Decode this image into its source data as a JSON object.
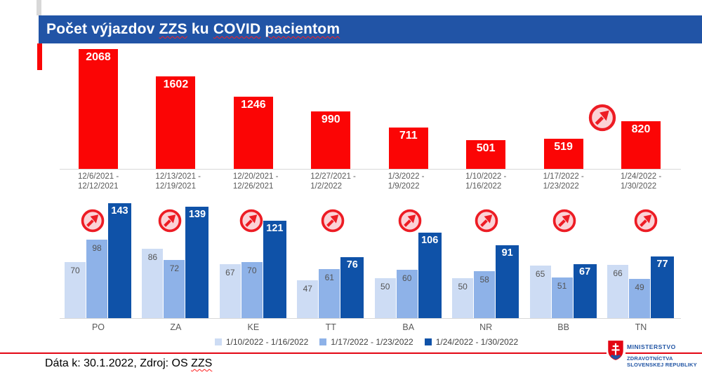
{
  "colors": {
    "banner_blue": "#2154A6",
    "bar_red": "#FB0505",
    "bar_light_blue": "#CDDCF4",
    "bar_medium_blue": "#8EB2E8",
    "bar_dark_blue": "#0F52A8",
    "axis_gray": "#D9D9D9",
    "label_gray": "#595959",
    "divider_red": "#E30613",
    "icon_red": "#ED1C24",
    "icon_fill_pink": "#FBD3D7",
    "logo_blue": "#2155A4"
  },
  "title": {
    "segments": [
      {
        "text": "Počet výjazdov ",
        "misspelled": false
      },
      {
        "text": "ZZS",
        "misspelled": true
      },
      {
        "text": " ku ",
        "misspelled": false
      },
      {
        "text": "COVID",
        "misspelled": true
      },
      {
        "text": " ",
        "misspelled": false
      },
      {
        "text": "pacientom",
        "misspelled": true
      }
    ]
  },
  "chart_data": [
    {
      "type": "bar",
      "title": "",
      "categories": [
        "12/6/2021 - 12/12/2021",
        "12/13/2021 - 12/19/2021",
        "12/20/2021 - 12/26/2021",
        "12/27/2021 - 1/2/2022",
        "1/3/2022 - 1/9/2022",
        "1/10/2022 - 1/16/2022",
        "1/17/2022 - 1/23/2022",
        "1/24/2022 - 1/30/2022"
      ],
      "values": [
        2068,
        1602,
        1246,
        990,
        711,
        501,
        519,
        820
      ],
      "bar_color": "#FB0505",
      "value_labels": "inside-top-white",
      "xlabel": "",
      "ylabel": "",
      "ylim": [
        0,
        2068
      ],
      "grid": false,
      "increase_marker_indices": [
        7
      ]
    },
    {
      "type": "bar",
      "title": "",
      "categories": [
        "PO",
        "ZA",
        "KE",
        "TT",
        "BA",
        "NR",
        "BB",
        "TN"
      ],
      "series": [
        {
          "name": "1/10/2022 - 1/16/2022",
          "color": "#CDDCF4",
          "values": [
            70,
            86,
            67,
            47,
            50,
            50,
            65,
            66
          ]
        },
        {
          "name": "1/17/2022 - 1/23/2022",
          "color": "#8EB2E8",
          "values": [
            98,
            72,
            70,
            61,
            60,
            58,
            51,
            49
          ]
        },
        {
          "name": "1/24/2022 - 1/30/2022",
          "color": "#0F52A8",
          "values": [
            143,
            139,
            121,
            76,
            106,
            91,
            67,
            77
          ]
        }
      ],
      "xlabel": "",
      "ylabel": "",
      "ylim": [
        0,
        153
      ],
      "grid": false,
      "legend_position": "bottom",
      "increase_marker_indices": [
        0,
        1,
        2,
        3,
        4,
        5,
        6,
        7
      ]
    }
  ],
  "footer": {
    "prefix": "Dáta k: 30.1.2022, Zdroj: OS ",
    "flagged": "ZZS"
  },
  "logo": {
    "line1": "MINISTERSTVO",
    "line2": "ZDRAVOTNÍCTVA",
    "line3": "SLOVENSKEJ REPUBLIKY"
  }
}
